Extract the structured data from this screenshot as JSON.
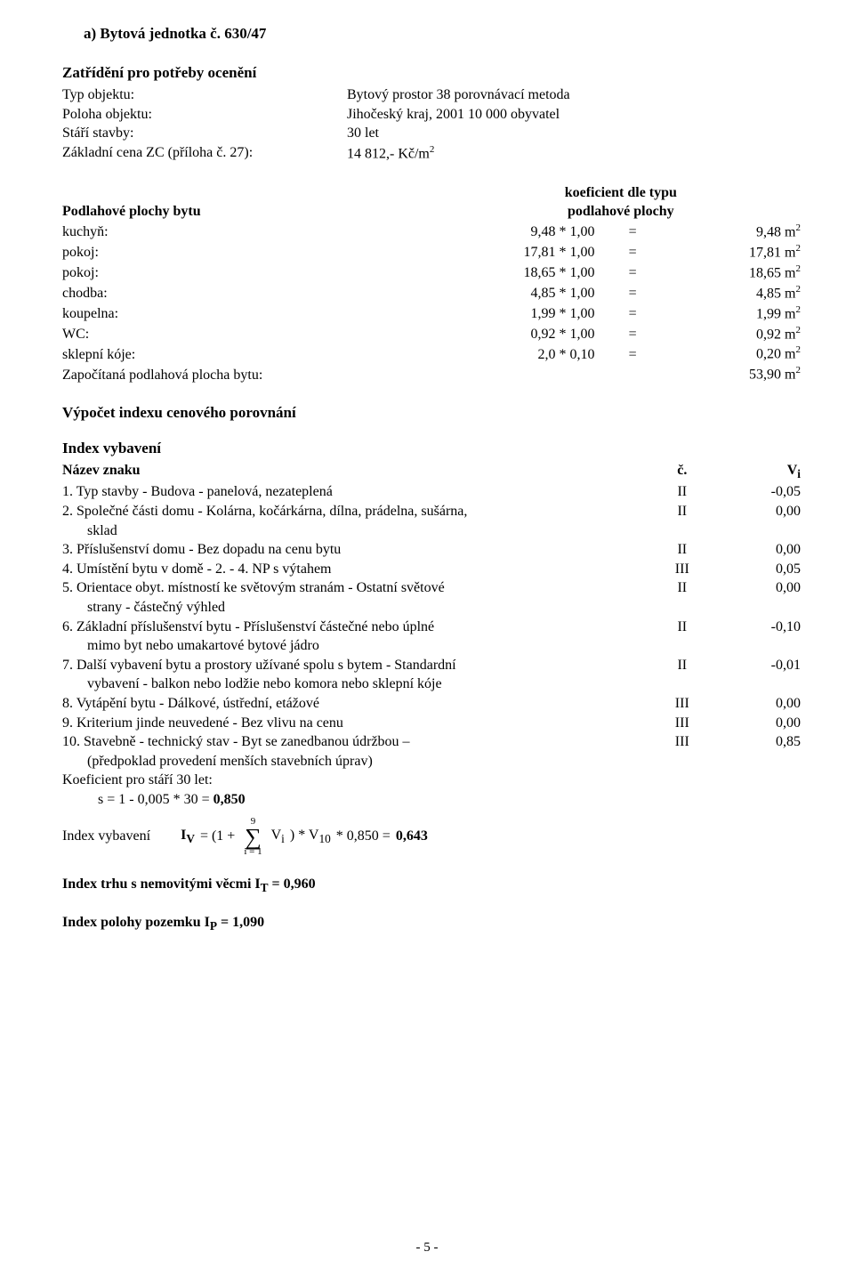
{
  "section_title": "a) Bytová jednotka č. 630/47",
  "heading_zatrid": "Zatřídění pro potřeby ocenění",
  "kv": {
    "typ_objektu_label": "Typ objektu:",
    "typ_objektu_val": "Bytový prostor 38 porovnávací metoda",
    "poloha_label": "Poloha objektu:",
    "poloha_val": "Jihočeský kraj, 2001 10 000 obyvatel",
    "stari_label": "Stáří stavby:",
    "stari_val": "30 let",
    "zc_label": "Základní cena ZC (příloha č. 27):",
    "zc_val_pre": "14 812,- Kč/m",
    "zc_val_sup": "2"
  },
  "floor": {
    "left_head": "Podlahové plochy bytu",
    "right_head_l1": "koeficient dle typu",
    "right_head_l2": "podlahové plochy",
    "rows": [
      {
        "label": "kuchyň:",
        "expr": "9,48  *  1,00",
        "eq": "=",
        "res": "9,48 m",
        "sup": "2"
      },
      {
        "label": "pokoj:",
        "expr": "17,81  *  1,00",
        "eq": "=",
        "res": "17,81 m",
        "sup": "2"
      },
      {
        "label": "pokoj:",
        "expr": "18,65  *  1,00",
        "eq": "=",
        "res": "18,65 m",
        "sup": "2"
      },
      {
        "label": "chodba:",
        "expr": "4,85  *  1,00",
        "eq": "=",
        "res": "4,85 m",
        "sup": "2"
      },
      {
        "label": "koupelna:",
        "expr": "1,99  *  1,00",
        "eq": "=",
        "res": "1,99 m",
        "sup": "2"
      },
      {
        "label": "WC:",
        "expr": "0,92  *  1,00",
        "eq": "=",
        "res": "0,92 m",
        "sup": "2"
      },
      {
        "label": "sklepní kóje:",
        "expr": "2,0  *  0,10",
        "eq": "=",
        "res": "0,20 m",
        "sup": "2"
      }
    ],
    "total_label": "Započítaná podlahová plocha bytu:",
    "total_res": "53,90 m",
    "total_sup": "2"
  },
  "heading_vypocet": "Výpočet indexu cenového porovnání",
  "heading_index_vyb": "Index vybavení",
  "idx_head_name": "Název znaku",
  "idx_head_c": "č.",
  "idx_head_v_pre": "V",
  "idx_head_v_sub": "i",
  "idx_rows": [
    {
      "name": "1. Typ stavby - Budova - panelová, nezateplená",
      "c": "II",
      "v": "-0,05"
    },
    {
      "name": "2. Společné části domu - Kolárna, kočárkárna, dílna, prádelna, sušárna,",
      "sub": "sklad",
      "c": "II",
      "v": "0,00"
    },
    {
      "name": "3. Příslušenství domu - Bez dopadu na cenu bytu",
      "c": "II",
      "v": "0,00"
    },
    {
      "name": "4. Umístění bytu v domě - 2. - 4. NP s výtahem",
      "c": "III",
      "v": "0,05"
    },
    {
      "name": "5. Orientace obyt. místností ke světovým stranám - Ostatní světové",
      "sub": "strany - částečný výhled",
      "c": "II",
      "v": "0,00"
    },
    {
      "name": "6. Základní příslušenství bytu - Příslušenství částečné nebo úplné",
      "sub": "mimo byt nebo umakartové bytové jádro",
      "c": "II",
      "v": "-0,10"
    },
    {
      "name": "7. Další vybavení bytu a prostory užívané spolu s bytem - Standardní",
      "sub": "vybavení - balkon nebo lodžie nebo komora nebo sklepní kóje",
      "c": "II",
      "v": "-0,01"
    },
    {
      "name": "8. Vytápění bytu - Dálkové, ústřední, etážové",
      "c": "III",
      "v": "0,00"
    },
    {
      "name": "9. Kriterium jinde neuvedené - Bez vlivu na cenu",
      "c": "III",
      "v": "0,00"
    },
    {
      "name": "10. Stavebně - technický stav - Byt se zanedbanou údržbou –",
      "sub": "(předpoklad provedení menších stavebních úprav)",
      "c": "III",
      "v": "0,85"
    }
  ],
  "koef_line": "Koeficient pro stáří 30 let:",
  "s_line_pre": "s = 1 - 0,005 * 30 = ",
  "s_line_bold": "0,850",
  "iv_label": "Index vybavení",
  "iv_sym_pre": "I",
  "iv_sym_sub": "V",
  "iv_eq1": " = (1 + ",
  "sigma_top": "9",
  "sigma_bot": "i = 1",
  "iv_eq2_pre": " V",
  "iv_eq2_sub": "i",
  "iv_eq3_pre": ") * V",
  "iv_eq3_sub": "10",
  "iv_eq4": " * 0,850 = ",
  "iv_result": "0,643",
  "it_line_pre": "Index trhu s nemovitými věcmi I",
  "it_sub": "T",
  "it_rest": " = 0,960",
  "ip_line_pre": "Index polohy pozemku I",
  "ip_sub": "P",
  "ip_rest": " = 1,090",
  "pagefoot": "- 5 -"
}
